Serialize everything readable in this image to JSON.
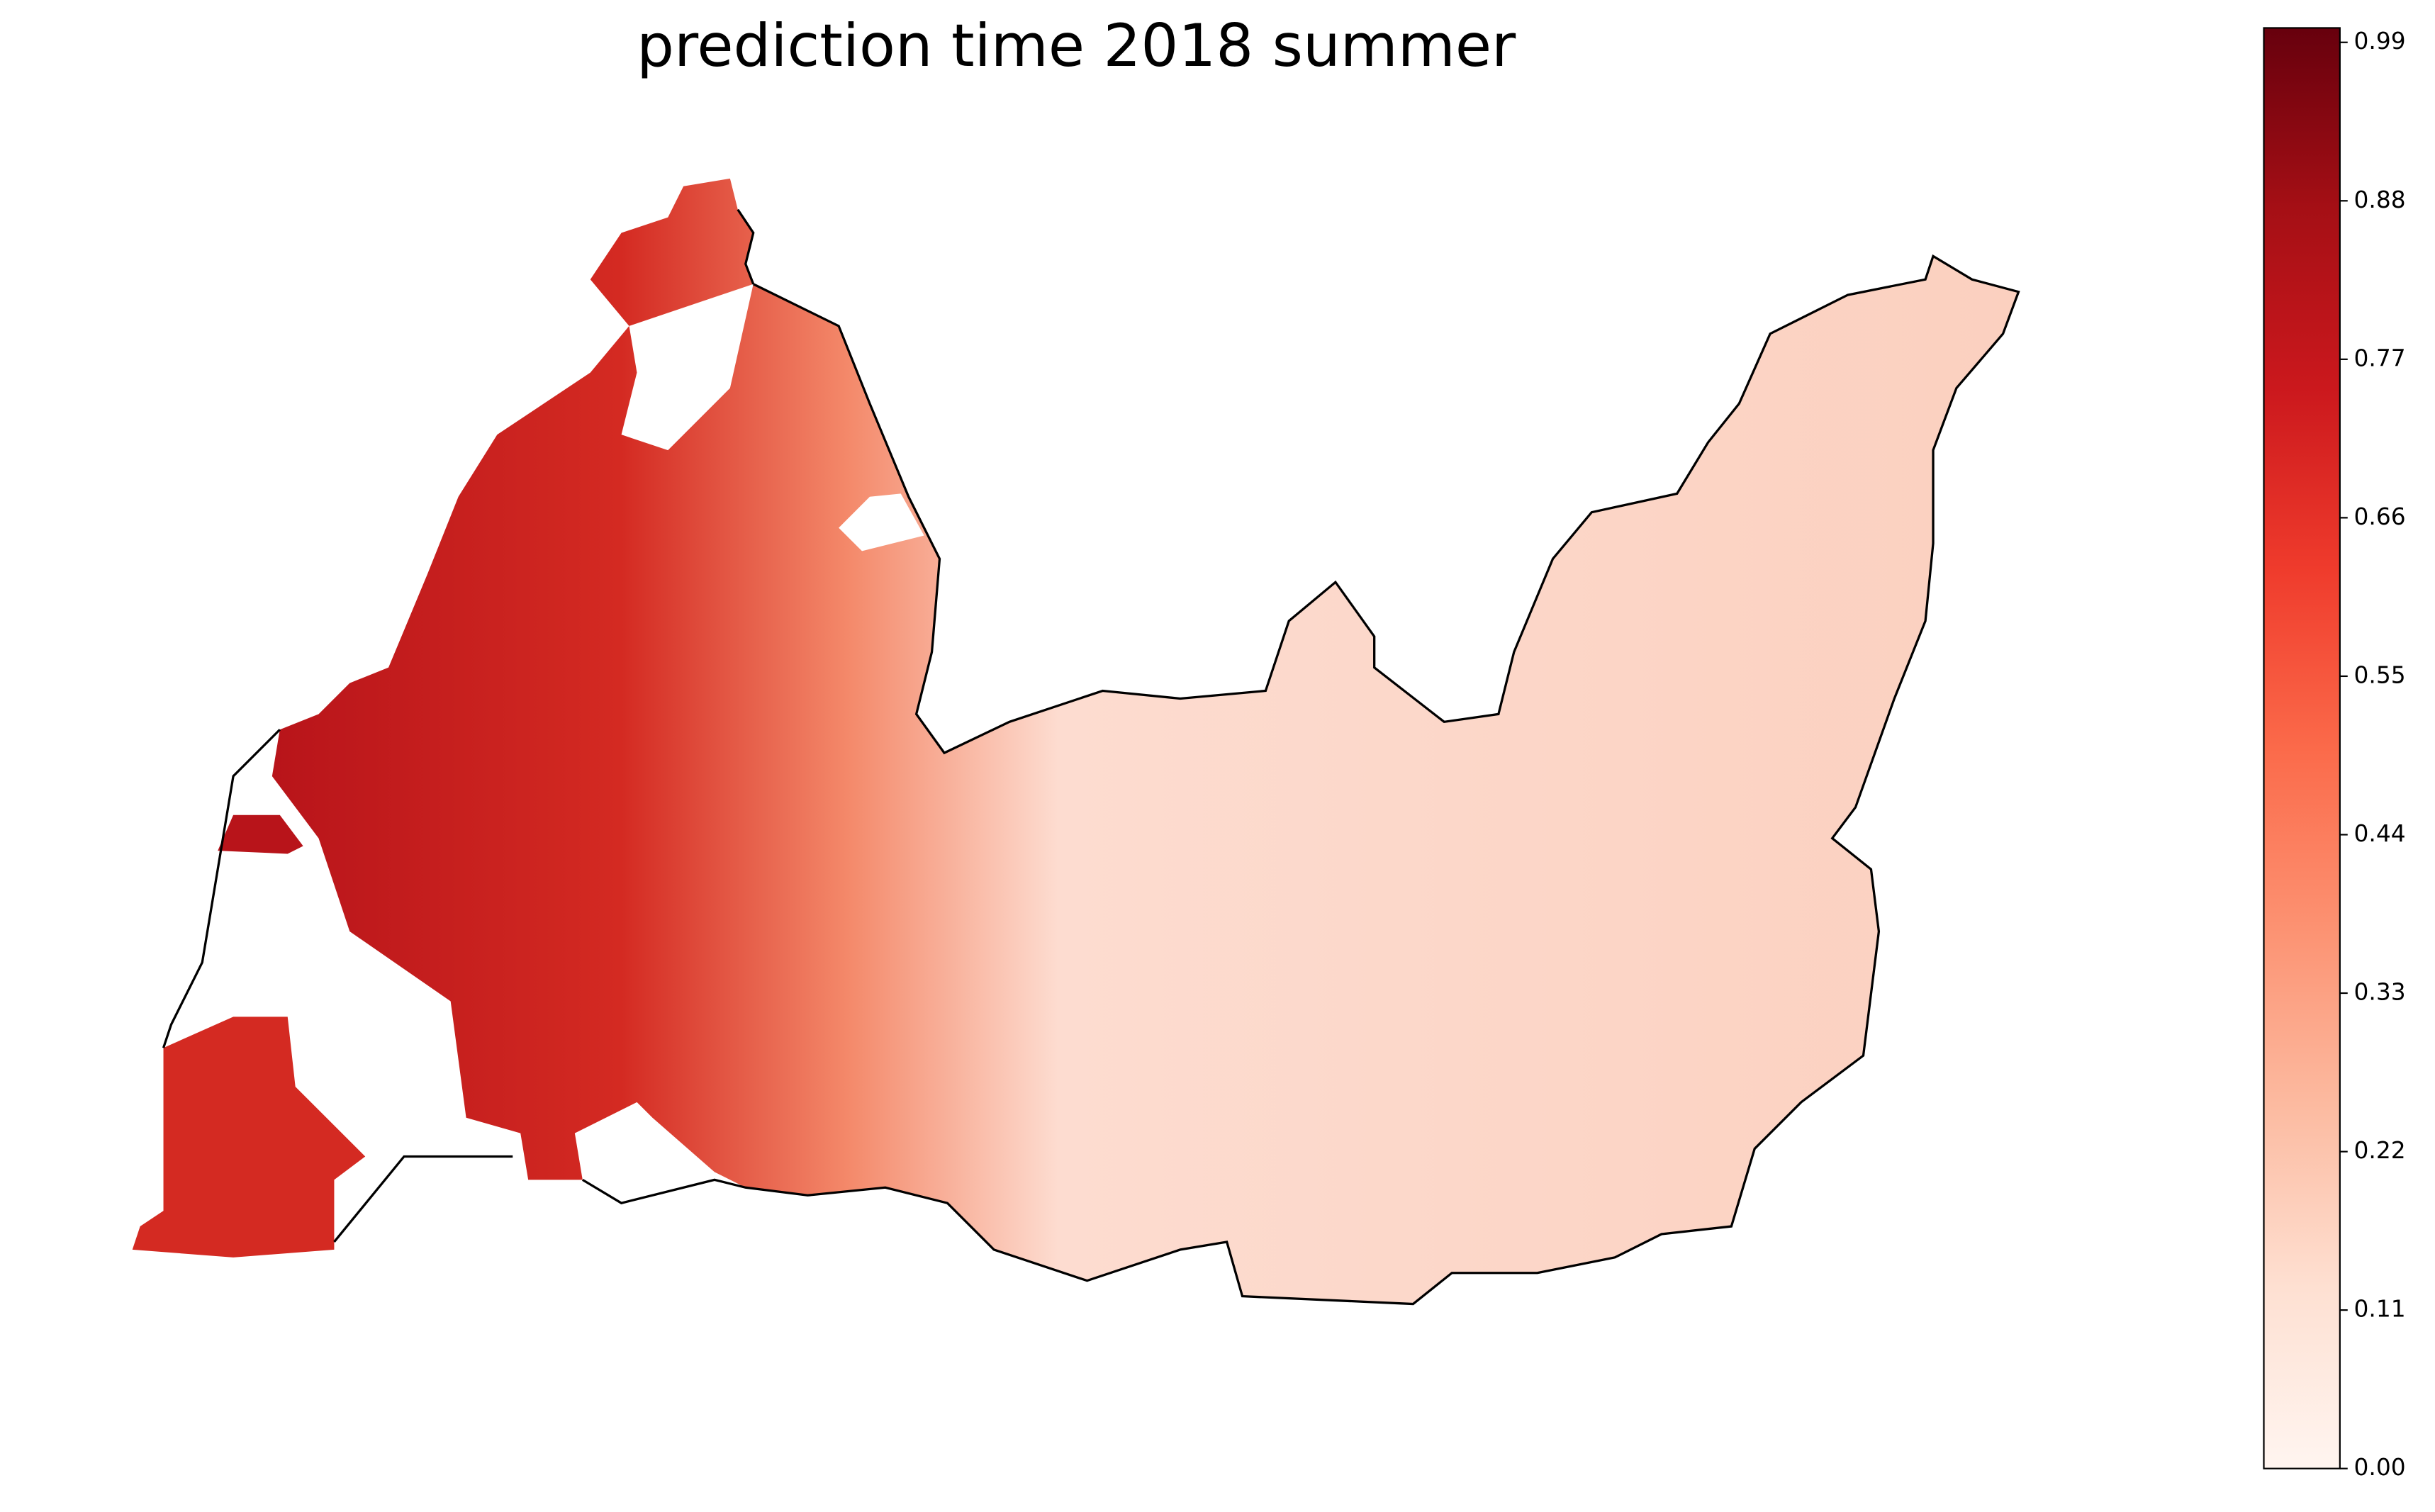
{
  "title": "prediction time 2018 summer",
  "colorbar": {
    "clim": [
      0,
      1
    ],
    "colors": [
      "#fff5f0",
      "#fee0d2",
      "#fcbba1",
      "#fc9272",
      "#fb6a4a",
      "#ef3b2c",
      "#cb181d",
      "#a50f15",
      "#67000d"
    ],
    "ticks": [
      {
        "value": 0,
        "label": "0.00"
      },
      {
        "value": 0.11,
        "label": "0.11"
      },
      {
        "value": 0.22,
        "label": "0.22"
      },
      {
        "value": 0.33,
        "label": "0.33"
      },
      {
        "value": 0.44,
        "label": "0.44"
      },
      {
        "value": 0.55,
        "label": "0.55"
      },
      {
        "value": 0.66,
        "label": "0.66"
      },
      {
        "value": 0.77,
        "label": "0.77"
      },
      {
        "value": 0.88,
        "label": "0.88"
      },
      {
        "value": 0.99,
        "label": "0.99"
      }
    ]
  }
}
